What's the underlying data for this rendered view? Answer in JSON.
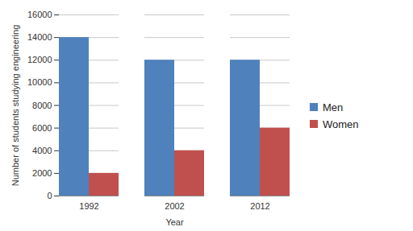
{
  "chart_data": {
    "type": "bar",
    "x_label": "Year",
    "y_label": "Number of students studying engineering",
    "categories": [
      "1992",
      "2002",
      "2012"
    ],
    "series": [
      {
        "name": "Men",
        "color": "#4f81bd",
        "values": [
          14000,
          12000,
          12000
        ]
      },
      {
        "name": "Women",
        "color": "#c0504d",
        "values": [
          2000,
          4000,
          6000
        ]
      }
    ],
    "ylim": [
      0,
      16000
    ],
    "yticks": [
      0,
      2000,
      4000,
      6000,
      8000,
      10000,
      12000,
      14000,
      16000
    ],
    "grid": true,
    "legend": "right"
  }
}
